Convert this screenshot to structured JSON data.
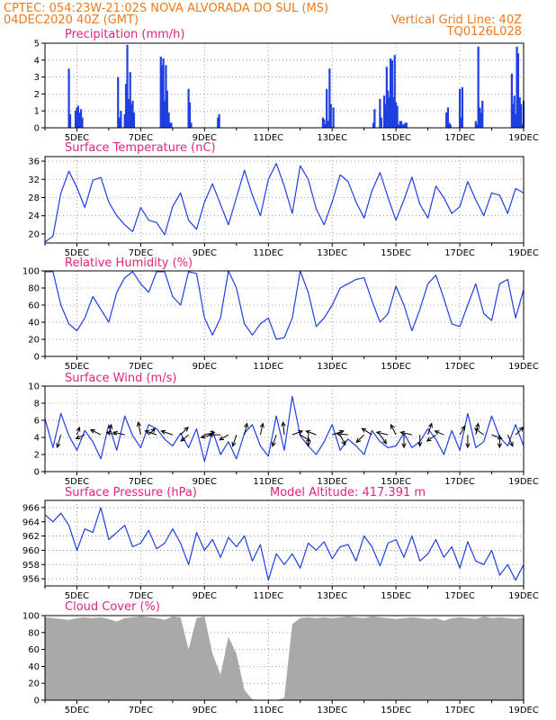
{
  "header": {
    "line1_left": "CPTEC:  054:23W-21:02S  NOVA ALVORADA DO SUL (MS)",
    "line2_left": "04DEC2020 40Z (GMT)",
    "line2_right": "Vertical Grid Line: 40Z",
    "line3_right": "TQ0126L028"
  },
  "colors": {
    "line": "#1f3fe0",
    "bar": "#1f3fe0",
    "cloud": "#a9a9a9",
    "title": "#e0247e",
    "header": "#f07a1a"
  },
  "x_axis": {
    "ticks": [
      5,
      7,
      9,
      11,
      13,
      15,
      17,
      19
    ],
    "labels": [
      "5DEC",
      "7DEC",
      "9DEC",
      "11DEC",
      "13DEC",
      "15DEC",
      "17DEC",
      "19DEC"
    ],
    "range": [
      4.0,
      19.0
    ]
  },
  "chart_data": [
    {
      "type": "bar",
      "title": "Precipitation (mm/h)",
      "ylim": [
        0,
        5
      ],
      "yticks": [
        0,
        1,
        2,
        3,
        4,
        5
      ],
      "x": [
        4.75,
        4.79,
        4.96,
        5.0,
        5.04,
        5.08,
        5.13,
        5.17,
        6.29,
        6.33,
        6.38,
        6.5,
        6.54,
        6.58,
        6.63,
        6.67,
        6.71,
        6.75,
        6.79,
        7.63,
        7.67,
        7.71,
        7.75,
        7.79,
        7.83,
        7.88,
        7.92,
        7.96,
        8.5,
        8.54,
        8.58,
        9.42,
        9.46,
        12.71,
        12.75,
        12.79,
        12.83,
        12.88,
        12.92,
        12.96,
        13.04,
        14.29,
        14.33,
        14.5,
        14.54,
        14.63,
        14.67,
        14.71,
        14.75,
        14.79,
        14.83,
        14.88,
        14.92,
        14.96,
        15.0,
        15.04,
        15.08,
        15.13,
        15.17,
        15.21,
        15.25,
        15.29,
        15.33,
        16.58,
        16.63,
        16.67,
        16.71,
        17.0,
        17.04,
        17.08,
        17.5,
        17.54,
        17.58,
        17.63,
        17.67,
        17.71,
        18.63,
        18.67,
        18.71,
        18.75,
        18.79,
        18.83,
        18.88,
        18.92,
        18.96,
        19.0
      ],
      "values": [
        3.5,
        0.8,
        1.0,
        1.2,
        1.3,
        0.9,
        1.1,
        0.6,
        3.0,
        0.6,
        1.0,
        0.8,
        2.6,
        4.9,
        1.7,
        3.3,
        1.4,
        1.6,
        0.9,
        4.2,
        3.7,
        4.1,
        1.6,
        3.7,
        2.2,
        0.9,
        0.3,
        0.3,
        2.3,
        1.5,
        0.3,
        0.6,
        0.8,
        0.6,
        0.5,
        0.2,
        2.3,
        0.4,
        3.5,
        1.4,
        1.2,
        0.3,
        1.1,
        1.7,
        0.6,
        1.9,
        1.4,
        3.6,
        2.2,
        1.8,
        4.1,
        4.0,
        1.8,
        4.3,
        1.5,
        1.3,
        0.2,
        0.4,
        0.4,
        0.2,
        0.2,
        0.3,
        0.3,
        0.9,
        1.2,
        0.3,
        0.2,
        2.3,
        0.6,
        2.4,
        0.4,
        0.2,
        4.8,
        1.2,
        0.9,
        1.6,
        3.2,
        1.4,
        1.9,
        0.8,
        4.8,
        4.4,
        1.8,
        1.4,
        0.2,
        1.6
      ]
    },
    {
      "type": "line",
      "title": "Surface Temperature (nC)",
      "ylim": [
        18,
        37
      ],
      "yticks": [
        20,
        24,
        28,
        32,
        36
      ],
      "x": [
        4.0,
        4.25,
        4.5,
        4.75,
        5.0,
        5.25,
        5.5,
        5.75,
        6.0,
        6.25,
        6.5,
        6.75,
        7.0,
        7.25,
        7.5,
        7.75,
        8.0,
        8.25,
        8.5,
        8.75,
        9.0,
        9.25,
        9.5,
        9.75,
        10.0,
        10.25,
        10.5,
        10.75,
        11.0,
        11.25,
        11.5,
        11.75,
        12.0,
        12.25,
        12.5,
        12.75,
        13.0,
        13.25,
        13.5,
        13.75,
        14.0,
        14.25,
        14.5,
        14.75,
        15.0,
        15.25,
        15.5,
        15.75,
        16.0,
        16.25,
        16.5,
        16.75,
        17.0,
        17.25,
        17.5,
        17.75,
        18.0,
        18.25,
        18.5,
        18.75,
        19.0
      ],
      "values": [
        18.2,
        19.5,
        29.0,
        33.8,
        30.2,
        25.8,
        31.8,
        32.4,
        27.0,
        24.0,
        22.0,
        20.5,
        25.8,
        23.0,
        22.5,
        19.8,
        26.0,
        29.0,
        23.0,
        21.0,
        27.0,
        31.0,
        26.5,
        22.0,
        28.0,
        34.0,
        28.5,
        24.0,
        32.0,
        35.5,
        30.5,
        24.5,
        35.0,
        32.0,
        25.5,
        22.0,
        27.0,
        33.0,
        31.5,
        27.0,
        23.5,
        29.5,
        33.5,
        28.0,
        23.0,
        27.5,
        32.5,
        26.5,
        23.5,
        30.5,
        28.0,
        24.5,
        26.0,
        31.5,
        27.5,
        24.0,
        29.0,
        28.5,
        24.5,
        30.0,
        29.0
      ]
    },
    {
      "type": "line",
      "title": "Relative Humidity (%)",
      "ylim": [
        0,
        100
      ],
      "yticks": [
        0,
        20,
        40,
        60,
        80,
        100
      ],
      "x": [
        4.0,
        4.25,
        4.5,
        4.75,
        5.0,
        5.25,
        5.5,
        5.75,
        6.0,
        6.25,
        6.5,
        6.75,
        7.0,
        7.25,
        7.5,
        7.75,
        8.0,
        8.25,
        8.5,
        8.75,
        9.0,
        9.25,
        9.5,
        9.75,
        10.0,
        10.25,
        10.5,
        10.75,
        11.0,
        11.25,
        11.5,
        11.75,
        12.0,
        12.25,
        12.5,
        12.75,
        13.0,
        13.25,
        13.5,
        13.75,
        14.0,
        14.25,
        14.5,
        14.75,
        15.0,
        15.25,
        15.5,
        15.75,
        16.0,
        16.25,
        16.5,
        16.75,
        17.0,
        17.25,
        17.5,
        17.75,
        18.0,
        18.25,
        18.5,
        18.75,
        19.0
      ],
      "values": [
        99.0,
        99.0,
        60.0,
        38.0,
        30.0,
        45.0,
        70.0,
        55.0,
        40.0,
        75.0,
        92.0,
        99.0,
        85.0,
        75.0,
        99.0,
        99.0,
        70.0,
        60.0,
        99.0,
        97.0,
        45.0,
        25.0,
        45.0,
        100.0,
        80.0,
        38.0,
        25.0,
        38.0,
        45.0,
        20.0,
        22.0,
        45.0,
        100.0,
        75.0,
        35.0,
        45.0,
        60.0,
        80.0,
        85.0,
        90.0,
        92.0,
        65.0,
        40.0,
        50.0,
        82.0,
        60.0,
        30.0,
        55.0,
        85.0,
        95.0,
        68.0,
        38.0,
        35.0,
        60.0,
        85.0,
        50.0,
        42.0,
        85.0,
        90.0,
        45.0,
        78.0
      ]
    },
    {
      "type": "line",
      "title": "Surface Wind (m/s)",
      "ylim": [
        0,
        10
      ],
      "yticks": [
        0,
        2,
        4,
        6,
        8,
        10
      ],
      "x": [
        4.0,
        4.25,
        4.5,
        4.75,
        5.0,
        5.25,
        5.5,
        5.75,
        6.0,
        6.25,
        6.5,
        6.75,
        7.0,
        7.25,
        7.5,
        7.75,
        8.0,
        8.25,
        8.5,
        8.75,
        9.0,
        9.25,
        9.5,
        9.75,
        10.0,
        10.25,
        10.5,
        10.75,
        11.0,
        11.25,
        11.5,
        11.75,
        12.0,
        12.25,
        12.5,
        12.75,
        13.0,
        13.25,
        13.5,
        13.75,
        14.0,
        14.25,
        14.5,
        14.75,
        15.0,
        15.25,
        15.5,
        15.75,
        16.0,
        16.25,
        16.5,
        16.75,
        17.0,
        17.25,
        17.5,
        17.75,
        18.0,
        18.25,
        18.5,
        18.75,
        19.0
      ],
      "values": [
        6.2,
        2.8,
        6.8,
        4.2,
        2.5,
        4.8,
        3.5,
        1.5,
        5.5,
        2.5,
        6.5,
        4.2,
        2.8,
        5.5,
        5.0,
        3.8,
        3.0,
        4.5,
        2.8,
        5.0,
        1.2,
        4.8,
        2.0,
        3.5,
        1.5,
        4.5,
        5.5,
        3.0,
        1.8,
        6.5,
        2.5,
        8.8,
        4.2,
        3.0,
        2.0,
        3.5,
        5.5,
        2.5,
        3.8,
        3.0,
        2.0,
        4.8,
        3.5,
        2.8,
        3.0,
        4.5,
        2.8,
        3.5,
        5.0,
        3.8,
        2.0,
        4.8,
        2.5,
        6.8,
        2.8,
        3.5,
        6.5,
        4.0,
        3.0,
        5.5,
        3.0
      ],
      "arrows": [
        {
          "x": 4.5,
          "u": -0.3,
          "v": -1.0
        },
        {
          "x": 5.0,
          "u": 0.2,
          "v": 0.6
        },
        {
          "x": 5.25,
          "u": -0.7,
          "v": -0.3
        },
        {
          "x": 5.75,
          "u": -0.8,
          "v": 0.4
        },
        {
          "x": 6.0,
          "u": 0.2,
          "v": 0.8
        },
        {
          "x": 6.25,
          "u": -0.8,
          "v": 0.2
        },
        {
          "x": 6.5,
          "u": -0.9,
          "v": 0.2
        },
        {
          "x": 7.0,
          "u": -0.2,
          "v": 1.0
        },
        {
          "x": 7.25,
          "u": 0.5,
          "v": 0.5
        },
        {
          "x": 7.5,
          "u": -0.9,
          "v": 0.3
        },
        {
          "x": 8.0,
          "u": -0.9,
          "v": 0.3
        },
        {
          "x": 8.25,
          "u": 0.6,
          "v": 0.6
        },
        {
          "x": 8.5,
          "u": -0.6,
          "v": -0.5
        },
        {
          "x": 9.0,
          "u": 0.8,
          "v": 0.2
        },
        {
          "x": 9.25,
          "u": -0.9,
          "v": -0.2
        },
        {
          "x": 9.5,
          "u": -0.9,
          "v": 0.0
        },
        {
          "x": 9.75,
          "u": -0.7,
          "v": -0.4
        },
        {
          "x": 10.0,
          "u": -0.3,
          "v": -0.9
        },
        {
          "x": 10.25,
          "u": 0.2,
          "v": 0.9
        },
        {
          "x": 10.75,
          "u": 0.2,
          "v": 0.9
        },
        {
          "x": 11.25,
          "u": -0.3,
          "v": -0.9
        },
        {
          "x": 11.5,
          "u": -0.1,
          "v": 1.0
        },
        {
          "x": 11.75,
          "u": 0.8,
          "v": 0.3
        },
        {
          "x": 12.0,
          "u": 0.8,
          "v": -0.5
        },
        {
          "x": 12.25,
          "u": 0.0,
          "v": -0.9
        },
        {
          "x": 12.5,
          "u": -0.8,
          "v": 0.3
        },
        {
          "x": 13.0,
          "u": 0.9,
          "v": 0.3
        },
        {
          "x": 13.25,
          "u": 0.4,
          "v": -0.8
        },
        {
          "x": 13.5,
          "u": -0.9,
          "v": 0.1
        },
        {
          "x": 14.0,
          "u": -0.6,
          "v": -0.6
        },
        {
          "x": 14.25,
          "u": -0.8,
          "v": 0.5
        },
        {
          "x": 14.5,
          "u": 0.5,
          "v": -0.7
        },
        {
          "x": 14.75,
          "u": -0.9,
          "v": 0.2
        },
        {
          "x": 15.0,
          "u": -0.4,
          "v": 0.8
        },
        {
          "x": 15.25,
          "u": 0.0,
          "v": -1.0
        },
        {
          "x": 15.5,
          "u": -0.9,
          "v": 0.2
        },
        {
          "x": 15.75,
          "u": 0.0,
          "v": -0.9
        },
        {
          "x": 16.0,
          "u": 0.3,
          "v": 0.9
        },
        {
          "x": 16.25,
          "u": -0.7,
          "v": -0.5
        },
        {
          "x": 16.5,
          "u": -0.7,
          "v": 0.3
        },
        {
          "x": 17.0,
          "u": 0.4,
          "v": 0.7
        },
        {
          "x": 17.25,
          "u": 0.0,
          "v": -1.0
        },
        {
          "x": 17.5,
          "u": 0.2,
          "v": 0.9
        },
        {
          "x": 17.75,
          "u": -0.7,
          "v": 0.5
        },
        {
          "x": 18.0,
          "u": 0.8,
          "v": -0.3
        },
        {
          "x": 18.25,
          "u": 0.0,
          "v": -1.0
        },
        {
          "x": 18.5,
          "u": 0.4,
          "v": -0.9
        },
        {
          "x": 18.75,
          "u": 0.6,
          "v": 0.6
        }
      ]
    },
    {
      "type": "line",
      "title": "Surface Pressure (hPa)",
      "annotation": "Model Altitude: 417.391 m",
      "ylim": [
        955.0,
        967.0
      ],
      "yticks": [
        956,
        958,
        960,
        962,
        964,
        966
      ],
      "x": [
        4.0,
        4.25,
        4.5,
        4.75,
        5.0,
        5.25,
        5.5,
        5.75,
        6.0,
        6.25,
        6.5,
        6.75,
        7.0,
        7.25,
        7.5,
        7.75,
        8.0,
        8.25,
        8.5,
        8.75,
        9.0,
        9.25,
        9.5,
        9.75,
        10.0,
        10.25,
        10.5,
        10.75,
        11.0,
        11.25,
        11.5,
        11.75,
        12.0,
        12.25,
        12.5,
        12.75,
        13.0,
        13.25,
        13.5,
        13.75,
        14.0,
        14.25,
        14.5,
        14.75,
        15.0,
        15.25,
        15.5,
        15.75,
        16.0,
        16.25,
        16.5,
        16.75,
        17.0,
        17.25,
        17.5,
        17.75,
        18.0,
        18.25,
        18.5,
        18.75,
        19.0
      ],
      "values": [
        965.0,
        964.0,
        965.2,
        963.5,
        960.0,
        963.0,
        962.5,
        966.0,
        961.5,
        962.5,
        963.5,
        960.5,
        961.0,
        962.8,
        960.2,
        961.0,
        963.0,
        961.0,
        958.0,
        962.5,
        960.0,
        961.5,
        959.0,
        961.8,
        960.5,
        962.0,
        958.5,
        960.8,
        955.8,
        959.5,
        958.0,
        959.5,
        957.5,
        961.0,
        960.0,
        961.2,
        958.8,
        960.5,
        960.8,
        958.5,
        962.0,
        960.5,
        957.8,
        961.0,
        961.5,
        959.0,
        962.0,
        958.5,
        959.5,
        961.5,
        959.0,
        960.5,
        957.5,
        961.2,
        958.5,
        958.0,
        960.0,
        956.5,
        958.0,
        955.8,
        958.0
      ]
    },
    {
      "type": "area",
      "title": "Cloud Cover (%)",
      "ylim": [
        0,
        100
      ],
      "yticks": [
        0,
        20,
        40,
        60,
        80,
        100
      ],
      "x": [
        4.0,
        4.25,
        4.5,
        4.75,
        5.0,
        5.25,
        5.5,
        5.75,
        6.0,
        6.25,
        6.5,
        6.75,
        7.0,
        7.25,
        7.5,
        7.75,
        8.0,
        8.25,
        8.5,
        8.75,
        9.0,
        9.25,
        9.5,
        9.75,
        10.0,
        10.25,
        10.5,
        10.75,
        11.0,
        11.25,
        11.5,
        11.75,
        12.0,
        12.25,
        12.5,
        12.75,
        13.0,
        13.25,
        13.5,
        13.75,
        14.0,
        14.25,
        14.5,
        14.75,
        15.0,
        15.25,
        15.5,
        15.75,
        16.0,
        16.25,
        16.5,
        16.75,
        17.0,
        17.25,
        17.5,
        17.75,
        18.0,
        18.25,
        18.5,
        18.75,
        19.0
      ],
      "values": [
        98,
        97,
        96,
        95,
        97,
        98,
        97,
        98,
        96,
        93,
        97,
        98,
        99,
        98,
        97,
        95,
        99,
        98,
        60,
        97,
        99,
        55,
        30,
        75,
        55,
        12,
        1,
        0,
        0,
        0,
        3,
        90,
        97,
        98,
        97,
        98,
        97,
        98,
        99,
        98,
        97,
        99,
        98,
        97,
        96,
        97,
        98,
        97,
        96,
        97,
        94,
        97,
        98,
        97,
        96,
        99,
        97,
        98,
        97,
        96,
        98
      ]
    }
  ]
}
